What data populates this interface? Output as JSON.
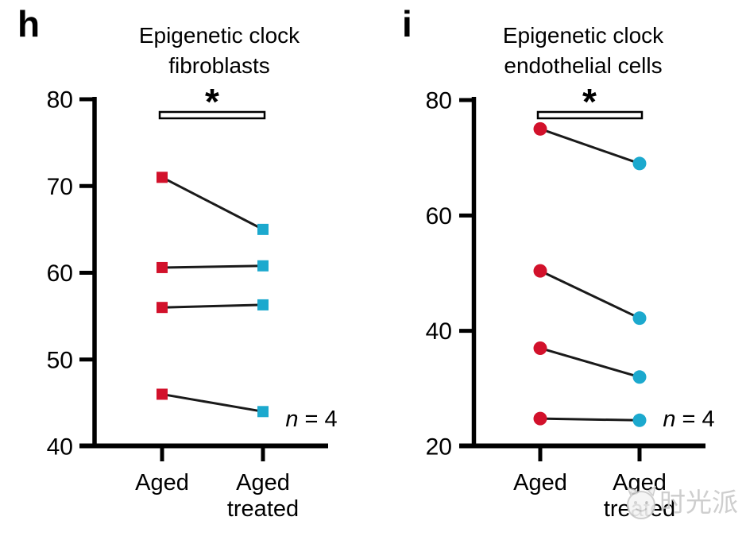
{
  "figure": {
    "background": "#ffffff"
  },
  "colors": {
    "aged": "#d2112b",
    "treated": "#1ca9ce",
    "connector": "#1a1a1a",
    "axis": "#000000",
    "significance_bar_fill": "#ffffff"
  },
  "watermark": {
    "text": "时光派",
    "logo": "mascot-face-icon"
  },
  "chart_data": [
    {
      "type": "line",
      "panel_label": "h",
      "title": "Epigenetic clock fibroblasts",
      "title_lines": [
        "Epigenetic clock",
        "fibroblasts"
      ],
      "marker": "square",
      "xlabel": "",
      "ylabel": "",
      "ylim": [
        40,
        80
      ],
      "yticks": [
        80,
        70,
        60,
        50,
        40
      ],
      "categories": [
        "Aged",
        "Aged treated"
      ],
      "series": [
        {
          "name": "pair-1",
          "values": [
            71,
            65
          ]
        },
        {
          "name": "pair-2",
          "values": [
            60.6,
            60.8
          ]
        },
        {
          "name": "pair-3",
          "values": [
            56,
            56.3
          ]
        },
        {
          "name": "pair-4",
          "values": [
            46,
            44
          ]
        }
      ],
      "significance": "*",
      "sample_size": "n = 4",
      "legend": "none",
      "grid": false
    },
    {
      "type": "line",
      "panel_label": "i",
      "title": "Epigenetic clock endothelial cells",
      "title_lines": [
        "Epigenetic clock",
        "endothelial cells"
      ],
      "marker": "circle",
      "xlabel": "",
      "ylabel": "",
      "ylim": [
        20,
        80
      ],
      "yticks": [
        80,
        60,
        40,
        20
      ],
      "categories": [
        "Aged",
        "Aged treated"
      ],
      "series": [
        {
          "name": "pair-1",
          "values": [
            75,
            69
          ]
        },
        {
          "name": "pair-2",
          "values": [
            50.4,
            42.2
          ]
        },
        {
          "name": "pair-3",
          "values": [
            37,
            32
          ]
        },
        {
          "name": "pair-4",
          "values": [
            24.8,
            24.5
          ]
        }
      ],
      "significance": "*",
      "sample_size": "n = 4",
      "legend": "none",
      "grid": false
    }
  ]
}
